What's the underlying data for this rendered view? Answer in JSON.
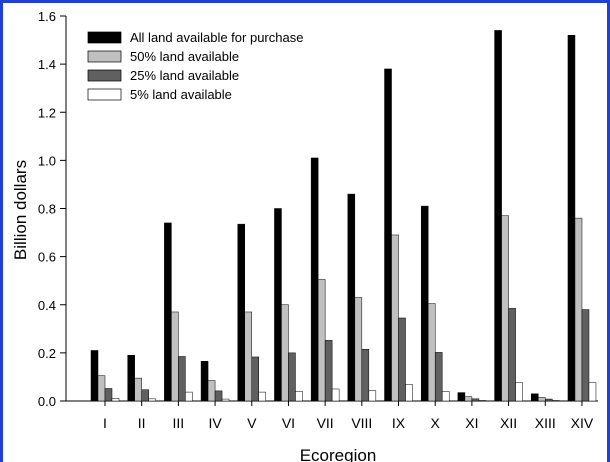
{
  "chart_data": {
    "type": "bar",
    "xlabel": "Ecoregion",
    "ylabel": "Billion dollars",
    "ylim": [
      0,
      1.6
    ],
    "yticks": [
      "0.0",
      "0.2",
      "0.4",
      "0.6",
      "0.8",
      "1.0",
      "1.2",
      "1.4",
      "1.6"
    ],
    "categories": [
      "I",
      "II",
      "III",
      "IV",
      "V",
      "VI",
      "VII",
      "VIII",
      "IX",
      "X",
      "XI",
      "XII",
      "XIII",
      "XIV"
    ],
    "legend_position": "top-left",
    "grid": false,
    "series": [
      {
        "name": "All land available for purchase",
        "color": "#000000",
        "values": [
          0.21,
          0.19,
          0.74,
          0.165,
          0.735,
          0.8,
          1.01,
          0.86,
          1.38,
          0.81,
          0.035,
          1.54,
          0.03,
          1.52
        ]
      },
      {
        "name": "50% land available",
        "color": "#c0c0c0",
        "values": [
          0.105,
          0.095,
          0.37,
          0.085,
          0.37,
          0.4,
          0.505,
          0.43,
          0.69,
          0.405,
          0.018,
          0.77,
          0.015,
          0.76
        ]
      },
      {
        "name": "25% land available",
        "color": "#606060",
        "values": [
          0.052,
          0.047,
          0.185,
          0.042,
          0.183,
          0.2,
          0.252,
          0.215,
          0.345,
          0.202,
          0.009,
          0.385,
          0.008,
          0.38
        ]
      },
      {
        "name": "5% land available",
        "color": "#ffffff",
        "values": [
          0.011,
          0.009,
          0.037,
          0.008,
          0.037,
          0.04,
          0.05,
          0.043,
          0.069,
          0.04,
          0.002,
          0.077,
          0.002,
          0.076
        ]
      }
    ]
  }
}
